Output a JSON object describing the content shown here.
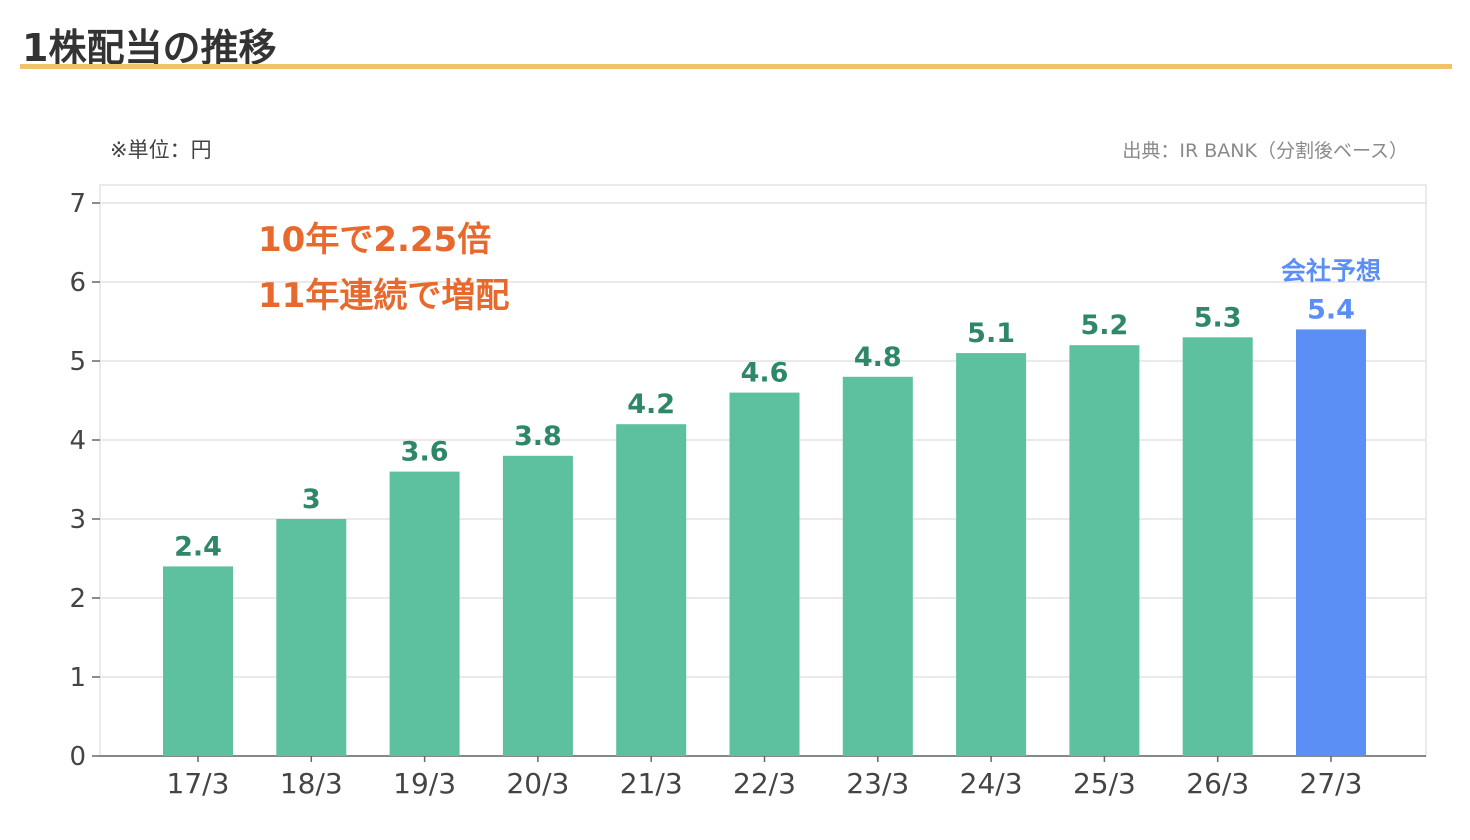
{
  "header": {
    "title": "1株配当の推移"
  },
  "notes": {
    "unit": "※単位：円",
    "source": "出典：IR BANK（分割後ベース）"
  },
  "colors": {
    "bar": "#5dc09e",
    "forecast_bar": "#5b8ff6",
    "label": "#2e8768",
    "accent": "#e8692e",
    "title_rule": "#f0c36a"
  },
  "chart_data": {
    "type": "bar",
    "title": "1株配当の推移",
    "categories": [
      "17/3",
      "18/3",
      "19/3",
      "20/3",
      "21/3",
      "22/3",
      "23/3",
      "24/3",
      "25/3",
      "26/3",
      "27/3"
    ],
    "values": [
      2.4,
      3,
      3.6,
      3.8,
      4.2,
      4.6,
      4.8,
      5.1,
      5.2,
      5.3,
      5.4
    ],
    "value_labels": [
      "2.4",
      "3",
      "3.6",
      "3.8",
      "4.2",
      "4.6",
      "4.8",
      "5.1",
      "5.2",
      "5.3",
      "5.4"
    ],
    "forecast_index": 10,
    "forecast_label": "会社予想",
    "ylim": [
      0,
      7
    ],
    "yticks": [
      "0",
      "1",
      "2",
      "3",
      "4",
      "5",
      "6",
      "7"
    ],
    "grid": true,
    "annotations": [
      "10年で2.25倍",
      "11年連続で増配"
    ]
  }
}
